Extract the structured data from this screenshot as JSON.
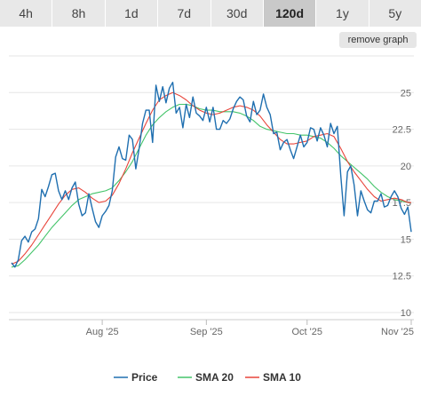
{
  "tabs": [
    {
      "label": "4h",
      "active": false
    },
    {
      "label": "8h",
      "active": false
    },
    {
      "label": "1d",
      "active": false
    },
    {
      "label": "7d",
      "active": false
    },
    {
      "label": "30d",
      "active": false
    },
    {
      "label": "120d",
      "active": true
    },
    {
      "label": "1y",
      "active": false
    },
    {
      "label": "5y",
      "active": false
    }
  ],
  "remove_graph_label": "remove graph",
  "colors": {
    "price": "#1f6fb0",
    "sma20": "#44c46a",
    "sma10": "#e8443a",
    "grid": "#e6e6e6"
  },
  "chart_data": {
    "type": "line",
    "y_ticks": [
      "10",
      "12.5",
      "15",
      "17.5",
      "20",
      "22.5",
      "25"
    ],
    "ylim": [
      10,
      27.5
    ],
    "x_ticks": [
      {
        "label": "Aug '25",
        "x": 30
      },
      {
        "label": "Sep '25",
        "x": 61
      },
      {
        "label": "Oct '25",
        "x": 91
      },
      {
        "label": "Nov '25",
        "x": 122
      }
    ],
    "xlim": [
      3,
      122
    ],
    "grid": true,
    "legend_position": "bottom",
    "series": [
      {
        "name": "Price",
        "color_key": "price",
        "x": [
          3,
          4,
          5,
          6,
          7,
          8,
          9,
          10,
          11,
          12,
          13,
          14,
          15,
          16,
          17,
          18,
          19,
          20,
          21,
          22,
          23,
          24,
          25,
          26,
          27,
          28,
          29,
          30,
          31,
          32,
          33,
          34,
          35,
          36,
          37,
          38,
          39,
          40,
          41,
          42,
          43,
          44,
          45,
          46,
          47,
          48,
          49,
          50,
          51,
          52,
          53,
          54,
          55,
          56,
          57,
          58,
          59,
          60,
          61,
          62,
          63,
          64,
          65,
          66,
          67,
          68,
          69,
          70,
          71,
          72,
          73,
          74,
          75,
          76,
          77,
          78,
          79,
          80,
          81,
          82,
          83,
          84,
          85,
          86,
          87,
          88,
          89,
          90,
          91,
          92,
          93,
          94,
          95,
          96,
          97,
          98,
          99,
          100,
          101,
          102,
          103,
          104,
          105,
          106,
          107,
          108,
          109,
          110,
          111,
          112,
          113,
          114,
          115,
          116,
          117,
          118,
          119,
          120,
          121,
          122
        ],
        "values": [
          13.4,
          13.1,
          13.6,
          14.9,
          15.2,
          14.8,
          15.5,
          15.7,
          16.4,
          18.4,
          17.9,
          18.6,
          19.4,
          19.5,
          18.3,
          17.7,
          18.3,
          17.7,
          18.5,
          18.9,
          17.4,
          16.6,
          16.8,
          18.1,
          17.1,
          16.2,
          15.8,
          16.6,
          16.9,
          17.3,
          18.3,
          20.6,
          21.3,
          20.5,
          20.4,
          22.1,
          21.8,
          19.8,
          21.2,
          22.9,
          23.8,
          23.8,
          21.6,
          25.5,
          24.4,
          25.4,
          24.3,
          25.3,
          25.7,
          23.6,
          24.0,
          22.6,
          24.2,
          23.3,
          24.7,
          23.6,
          23.4,
          23.1,
          24.0,
          23.0,
          24.0,
          22.5,
          22.5,
          23.1,
          22.9,
          23.2,
          23.9,
          24.4,
          24.7,
          24.5,
          23.4,
          23.0,
          24.4,
          23.5,
          23.8,
          24.9,
          24.0,
          23.5,
          22.2,
          22.3,
          21.1,
          21.6,
          21.8,
          21.1,
          20.5,
          21.3,
          22.1,
          21.3,
          21.6,
          22.6,
          22.5,
          21.7,
          22.6,
          22.1,
          21.3,
          22.9,
          22.2,
          22.7,
          19.4,
          16.6,
          19.6,
          20.0,
          18.7,
          16.6,
          18.3,
          17.6,
          17.0,
          16.8,
          17.6,
          17.6,
          18.1,
          17.2,
          17.3,
          17.9,
          18.3,
          17.9,
          17.1,
          16.7,
          17.2,
          15.5
        ]
      },
      {
        "name": "SMA 20",
        "color_key": "sma20",
        "x": [
          3,
          5,
          7,
          9,
          11,
          13,
          15,
          17,
          19,
          21,
          23,
          25,
          27,
          29,
          31,
          33,
          35,
          37,
          39,
          41,
          43,
          45,
          47,
          49,
          51,
          53,
          55,
          57,
          59,
          61,
          63,
          65,
          67,
          69,
          71,
          73,
          75,
          77,
          79,
          81,
          83,
          85,
          87,
          89,
          91,
          93,
          95,
          97,
          99,
          101,
          103,
          105,
          107,
          109,
          111,
          113,
          115,
          117,
          119,
          121,
          122
        ],
        "values": [
          13.1,
          13.2,
          13.6,
          14.1,
          14.6,
          15.2,
          15.8,
          16.3,
          16.8,
          17.3,
          17.7,
          17.9,
          18.1,
          18.2,
          18.3,
          18.5,
          19.0,
          19.6,
          20.3,
          21.2,
          22.1,
          22.8,
          23.3,
          23.7,
          24.0,
          24.2,
          24.2,
          24.1,
          23.9,
          23.8,
          23.8,
          23.7,
          23.7,
          23.7,
          23.6,
          23.4,
          23.1,
          22.7,
          22.5,
          22.4,
          22.3,
          22.2,
          22.2,
          22.1,
          22.1,
          22.0,
          21.9,
          21.6,
          21.2,
          20.7,
          20.3,
          19.9,
          19.5,
          19.1,
          18.6,
          18.2,
          17.9,
          17.7,
          17.6,
          17.5,
          17.5
        ]
      },
      {
        "name": "SMA 10",
        "color_key": "sma10",
        "x": [
          3,
          5,
          7,
          9,
          11,
          13,
          15,
          17,
          19,
          21,
          23,
          25,
          27,
          29,
          31,
          33,
          35,
          37,
          39,
          41,
          43,
          45,
          47,
          49,
          51,
          53,
          55,
          57,
          59,
          61,
          63,
          65,
          67,
          69,
          71,
          73,
          75,
          77,
          79,
          81,
          83,
          85,
          87,
          89,
          91,
          93,
          95,
          97,
          99,
          101,
          103,
          105,
          107,
          109,
          111,
          113,
          115,
          117,
          119,
          121,
          122
        ],
        "values": [
          13.3,
          13.5,
          14.0,
          14.6,
          15.3,
          16.0,
          16.7,
          17.4,
          18.0,
          18.4,
          18.5,
          18.2,
          17.8,
          17.5,
          17.6,
          18.0,
          18.8,
          19.8,
          20.9,
          21.9,
          22.9,
          23.8,
          24.5,
          24.8,
          25.0,
          24.8,
          24.5,
          24.1,
          23.8,
          23.6,
          23.5,
          23.6,
          23.8,
          24.0,
          24.1,
          24.0,
          23.8,
          23.4,
          22.8,
          22.3,
          21.8,
          21.5,
          21.5,
          21.6,
          21.7,
          22.0,
          22.1,
          22.2,
          22.0,
          21.2,
          20.3,
          19.6,
          19.0,
          18.4,
          17.9,
          17.6,
          17.7,
          17.8,
          17.7,
          17.5,
          17.5
        ]
      }
    ]
  }
}
